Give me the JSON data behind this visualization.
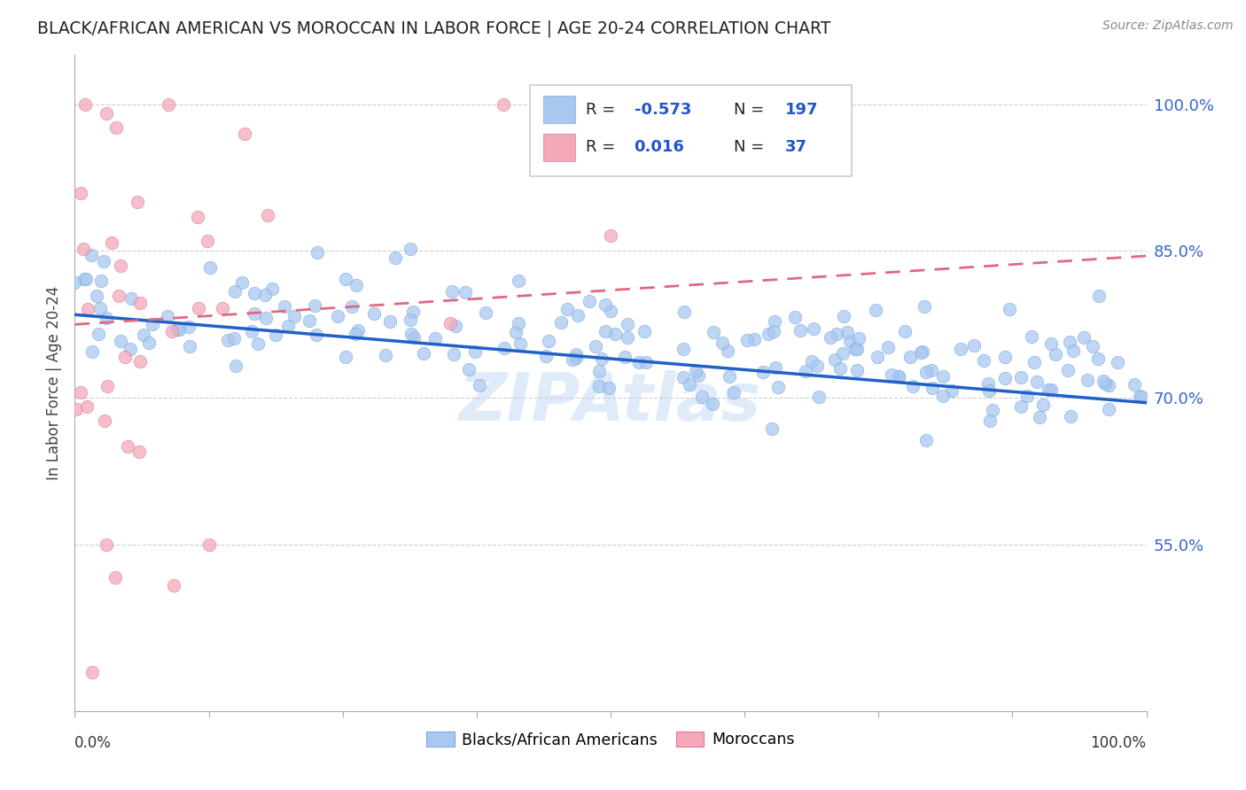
{
  "title": "BLACK/AFRICAN AMERICAN VS MOROCCAN IN LABOR FORCE | AGE 20-24 CORRELATION CHART",
  "source": "Source: ZipAtlas.com",
  "ylabel": "In Labor Force | Age 20-24",
  "ytick_labels": [
    "100.0%",
    "85.0%",
    "70.0%",
    "55.0%"
  ],
  "ytick_values": [
    1.0,
    0.85,
    0.7,
    0.55
  ],
  "xlim": [
    0.0,
    1.0
  ],
  "ylim": [
    0.38,
    1.05
  ],
  "blue_R": -0.573,
  "blue_N": 197,
  "pink_R": 0.016,
  "pink_N": 37,
  "blue_color": "#a8c8f0",
  "blue_edge_color": "#7aaade",
  "pink_color": "#f4a8b8",
  "pink_edge_color": "#e07898",
  "blue_line_color": "#2060c8",
  "pink_line_color": "#e06880",
  "background_color": "#ffffff",
  "grid_color": "#d0d0d0",
  "title_color": "#222222",
  "legend_blue_label": "Blacks/African Americans",
  "legend_pink_label": "Moroccans",
  "blue_trend_start_y": 0.785,
  "blue_trend_end_y": 0.695,
  "pink_trend_start_y": 0.775,
  "pink_trend_end_y": 0.845
}
